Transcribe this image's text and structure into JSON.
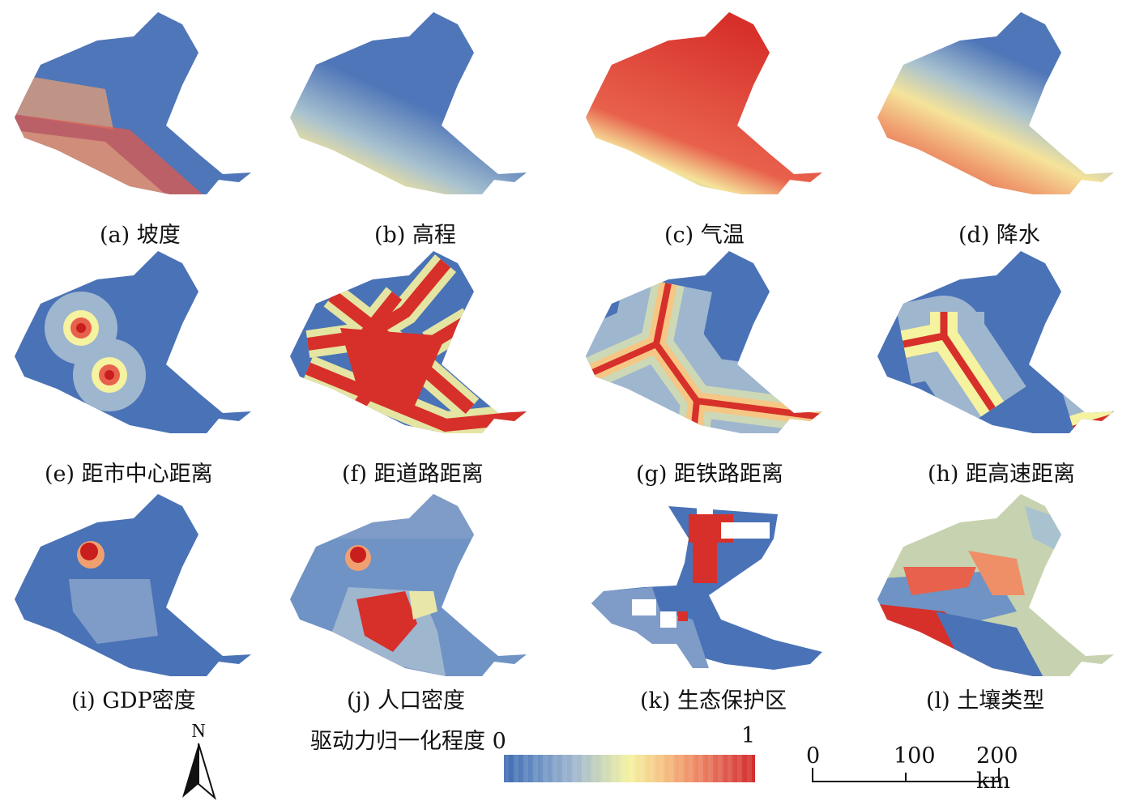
{
  "panels": [
    {
      "id": "a",
      "caption": "(a) 坡度",
      "style": "slope"
    },
    {
      "id": "b",
      "caption": "(b) 高程",
      "style": "elevation"
    },
    {
      "id": "c",
      "caption": "(c) 气温",
      "style": "temperature"
    },
    {
      "id": "d",
      "caption": "(d) 降水",
      "style": "precipitation"
    },
    {
      "id": "e",
      "caption": "(e) 距市中心距离",
      "style": "city-center"
    },
    {
      "id": "f",
      "caption": "(f) 距道路距离",
      "style": "roads"
    },
    {
      "id": "g",
      "caption": "(g) 距铁路距离",
      "style": "railway"
    },
    {
      "id": "h",
      "caption": "(h) 距高速距离",
      "style": "highway"
    },
    {
      "id": "i",
      "caption": "(i) GDP密度",
      "style": "gdp"
    },
    {
      "id": "j",
      "caption": "(j) 人口密度",
      "style": "population"
    },
    {
      "id": "k",
      "caption": "(k) 生态保护区",
      "style": "eco-reserve"
    },
    {
      "id": "l",
      "caption": "(l) 土壤类型",
      "style": "soil"
    }
  ],
  "legend": {
    "title": "驱动力归一化程度 0",
    "max_label": "1",
    "colors": [
      "#3e6bb3",
      "#9fb6cf",
      "#f5f2a0",
      "#ef8f68",
      "#d22c2c"
    ]
  },
  "scale_bar": {
    "labels": [
      "0",
      "100",
      "200 km"
    ]
  },
  "north_arrow": {
    "label": "N"
  },
  "colors": {
    "low": "#4a72b6",
    "mid": "#f5f2a0",
    "high": "#d7302a"
  }
}
